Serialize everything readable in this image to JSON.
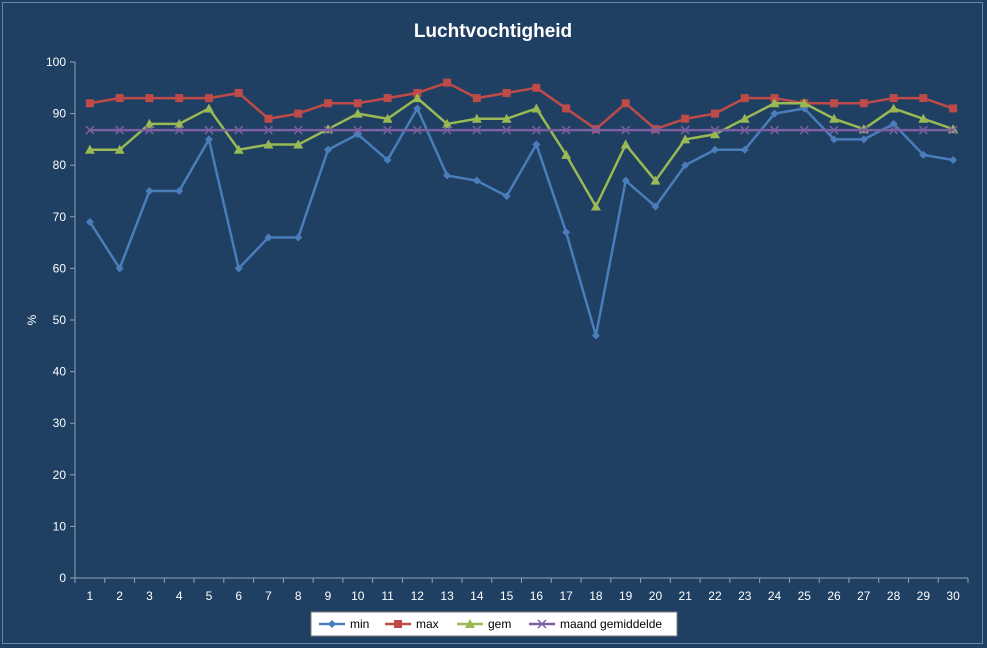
{
  "chart_data": {
    "type": "line",
    "title": "Luchtvochtigheid",
    "xlabel": "",
    "ylabel": "%",
    "ylim": [
      0,
      100
    ],
    "yticks": [
      0,
      10,
      20,
      30,
      40,
      50,
      60,
      70,
      80,
      90,
      100
    ],
    "categories": [
      "1",
      "2",
      "3",
      "4",
      "5",
      "6",
      "7",
      "8",
      "9",
      "10",
      "11",
      "12",
      "13",
      "14",
      "15",
      "16",
      "17",
      "18",
      "19",
      "20",
      "21",
      "22",
      "23",
      "24",
      "25",
      "26",
      "27",
      "28",
      "29",
      "30"
    ],
    "grid": false,
    "legend_position": "bottom",
    "series": [
      {
        "name": "min",
        "color": "#4a7ebb",
        "marker": "diamond",
        "values": [
          69,
          60,
          75,
          75,
          85,
          60,
          66,
          66,
          83,
          86,
          81,
          91,
          78,
          77,
          74,
          84,
          67,
          47,
          77,
          72,
          80,
          83,
          83,
          90,
          91,
          85,
          85,
          88,
          82,
          81
        ]
      },
      {
        "name": "max",
        "color": "#be4b48",
        "marker": "square",
        "values": [
          92,
          93,
          93,
          93,
          93,
          94,
          89,
          90,
          92,
          92,
          93,
          94,
          96,
          93,
          94,
          95,
          91,
          87,
          92,
          87,
          89,
          90,
          93,
          93,
          92,
          92,
          92,
          93,
          93,
          91
        ]
      },
      {
        "name": "gem",
        "color": "#98b954",
        "marker": "triangle",
        "values": [
          83,
          83,
          88,
          88,
          91,
          83,
          84,
          84,
          87,
          90,
          89,
          93,
          88,
          89,
          89,
          91,
          82,
          72,
          84,
          77,
          85,
          86,
          89,
          92,
          92,
          89,
          87,
          91,
          89,
          87
        ]
      },
      {
        "name": "maand gemiddelde",
        "color": "#7d60a0",
        "marker": "x",
        "values": [
          86.8,
          86.8,
          86.8,
          86.8,
          86.8,
          86.8,
          86.8,
          86.8,
          86.8,
          86.8,
          86.8,
          86.8,
          86.8,
          86.8,
          86.8,
          86.8,
          86.8,
          86.8,
          86.8,
          86.8,
          86.8,
          86.8,
          86.8,
          86.8,
          86.8,
          86.8,
          86.8,
          86.8,
          86.8,
          86.8
        ]
      }
    ]
  }
}
